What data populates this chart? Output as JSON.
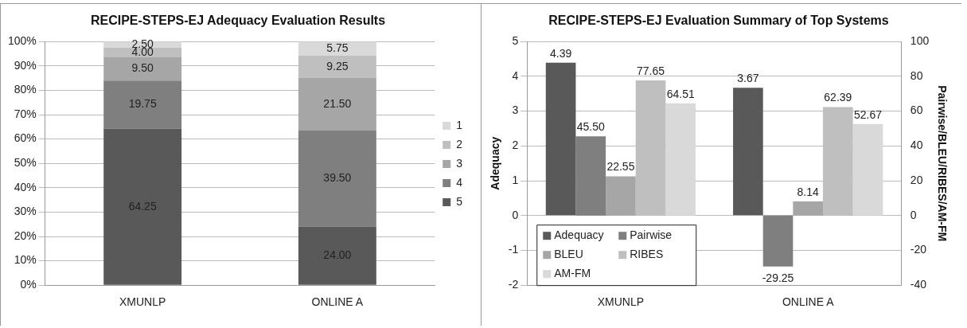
{
  "chart_data": [
    {
      "type": "bar",
      "title": "RECIPE-STEPS-EJ Adequacy Evaluation Results",
      "categories": [
        "XMUNLP",
        "ONLINE A"
      ],
      "stacked": true,
      "series": [
        {
          "name": "5",
          "color": "#595959",
          "values": [
            64.25,
            24.0
          ],
          "value_labels": [
            "64.25",
            "24.00"
          ]
        },
        {
          "name": "4",
          "color": "#7f7f7f",
          "values": [
            19.75,
            39.5
          ],
          "value_labels": [
            "19.75",
            "39.50"
          ]
        },
        {
          "name": "3",
          "color": "#a6a6a6",
          "values": [
            9.5,
            21.5
          ],
          "value_labels": [
            "9.50",
            "21.50"
          ]
        },
        {
          "name": "2",
          "color": "#bfbfbf",
          "values": [
            4.0,
            9.25
          ],
          "value_labels": [
            "4.00",
            "9.25"
          ]
        },
        {
          "name": "1",
          "color": "#d9d9d9",
          "values": [
            2.5,
            5.75
          ],
          "value_labels": [
            "2.50",
            "5.75"
          ]
        }
      ],
      "ylim": [
        0,
        100
      ],
      "yticks": [
        {
          "value": 0,
          "label": "0%"
        },
        {
          "value": 10,
          "label": "10%"
        },
        {
          "value": 20,
          "label": "20%"
        },
        {
          "value": 30,
          "label": "30%"
        },
        {
          "value": 40,
          "label": "40%"
        },
        {
          "value": 50,
          "label": "50%"
        },
        {
          "value": 60,
          "label": "60%"
        },
        {
          "value": 70,
          "label": "70%"
        },
        {
          "value": 80,
          "label": "80%"
        },
        {
          "value": 90,
          "label": "90%"
        },
        {
          "value": 100,
          "label": "100%"
        }
      ],
      "grid": "y",
      "legend": "right"
    },
    {
      "type": "bar",
      "title": "RECIPE-STEPS-EJ Evaluation Summary of Top Systems",
      "categories": [
        "XMUNLP",
        "ONLINE A"
      ],
      "ylabel": "Adequacy",
      "y2label": "Pairwise/BLEU/RIBES/AM-FM",
      "series": [
        {
          "name": "Adequacy",
          "color": "#595959",
          "values": [
            4.39,
            3.67
          ],
          "value_labels": [
            "4.39",
            "3.67"
          ]
        },
        {
          "name": "Pairwise",
          "color": "#7f7f7f",
          "axis": "y2",
          "values": [
            45.5,
            -29.25
          ],
          "value_labels": [
            "45.50",
            "-29.25"
          ]
        },
        {
          "name": "BLEU",
          "color": "#a6a6a6",
          "axis": "y2",
          "values": [
            22.55,
            8.14
          ],
          "value_labels": [
            "22.55",
            "8.14"
          ]
        },
        {
          "name": "RIBES",
          "color": "#bfbfbf",
          "axis": "y2",
          "values": [
            77.65,
            62.39
          ],
          "value_labels": [
            "77.65",
            "62.39"
          ]
        },
        {
          "name": "AM-FM",
          "color": "#d9d9d9",
          "axis": "y2",
          "values": [
            64.51,
            52.67
          ],
          "value_labels": [
            "64.51",
            "52.67"
          ]
        }
      ],
      "ylim": [
        -2,
        5
      ],
      "yticks": [
        -2,
        -1,
        0,
        1,
        2,
        3,
        4,
        5
      ],
      "y2lim": [
        -40,
        100
      ],
      "y2ticks": [
        -40,
        -20,
        0,
        20,
        40,
        60,
        80,
        100
      ],
      "grid": "y",
      "legend": "bottom left"
    }
  ]
}
